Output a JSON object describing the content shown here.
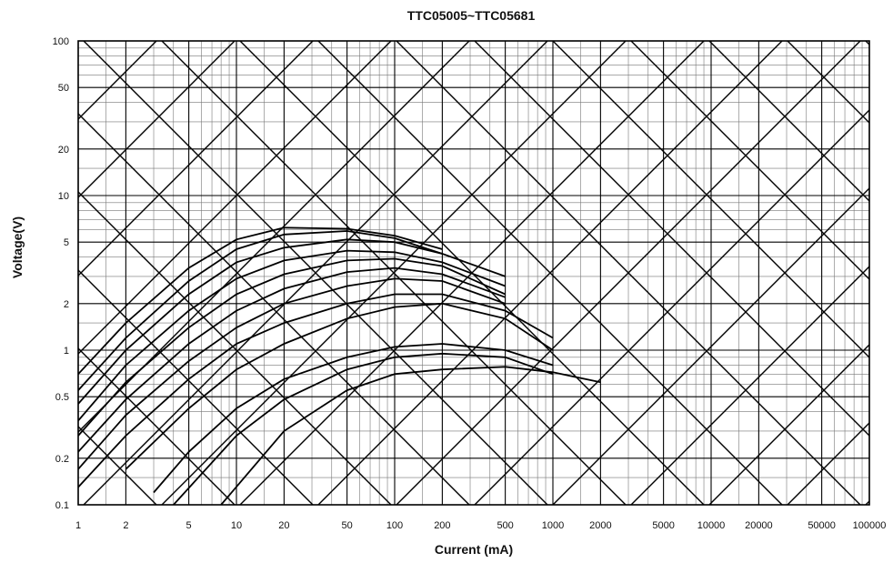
{
  "chart_data": {
    "type": "line",
    "title": "TTC05005~TTC05681",
    "xlabel": "Current (mA)",
    "ylabel": "Voltage(V)",
    "x_scale": "log",
    "y_scale": "log",
    "xlim": [
      1,
      100000
    ],
    "ylim": [
      0.1,
      100
    ],
    "x_ticks": [
      "1",
      "2",
      "5",
      "10",
      "20",
      "50",
      "100",
      "200",
      "500",
      "1000",
      "2000",
      "5000",
      "10000",
      "20000",
      "50000",
      "100000"
    ],
    "y_ticks": [
      "0.1",
      "0.2",
      "0.5",
      "1",
      "2",
      "5",
      "10",
      "20",
      "50",
      "100"
    ],
    "grid": true,
    "series": [
      {
        "x": [
          1,
          2,
          5,
          10,
          20,
          50,
          100,
          200
        ],
        "y": [
          0.7,
          1.5,
          3.4,
          5.2,
          6.2,
          6.1,
          5.5,
          4.5
        ]
      },
      {
        "x": [
          1,
          2,
          5,
          10,
          20,
          50,
          100,
          200
        ],
        "y": [
          0.55,
          1.2,
          2.8,
          4.5,
          5.6,
          5.9,
          5.3,
          4.2
        ]
      },
      {
        "x": [
          1,
          2,
          5,
          10,
          20,
          50,
          100,
          200,
          500
        ],
        "y": [
          0.45,
          1.0,
          2.3,
          3.7,
          4.6,
          5.2,
          5.0,
          4.2,
          3.0
        ]
      },
      {
        "x": [
          1,
          2,
          5,
          10,
          20,
          50,
          100,
          200,
          500
        ],
        "y": [
          0.35,
          0.8,
          1.8,
          2.9,
          3.8,
          4.4,
          4.3,
          3.7,
          2.6
        ]
      },
      {
        "x": [
          1,
          2,
          5,
          10,
          20,
          50,
          100,
          200,
          500
        ],
        "y": [
          0.28,
          0.62,
          1.4,
          2.3,
          3.1,
          3.8,
          3.9,
          3.5,
          2.3
        ]
      },
      {
        "x": [
          1,
          2,
          5,
          10,
          20,
          50,
          100,
          200,
          500
        ],
        "y": [
          0.22,
          0.48,
          1.1,
          1.8,
          2.5,
          3.2,
          3.4,
          3.1,
          2.2
        ]
      },
      {
        "x": [
          1,
          2,
          5,
          10,
          20,
          50,
          100,
          200,
          500
        ],
        "y": [
          0.17,
          0.38,
          0.85,
          1.4,
          2.0,
          2.6,
          2.9,
          2.8,
          2.0
        ]
      },
      {
        "x": [
          1,
          2,
          5,
          10,
          20,
          50,
          100,
          200,
          500,
          1000
        ],
        "y": [
          0.13,
          0.28,
          0.65,
          1.1,
          1.5,
          2.0,
          2.3,
          2.3,
          1.8,
          1.2
        ]
      },
      {
        "x": [
          2,
          5,
          10,
          20,
          50,
          100,
          200,
          500,
          1000
        ],
        "y": [
          0.17,
          0.42,
          0.75,
          1.1,
          1.6,
          1.9,
          2.0,
          1.6,
          1.0
        ]
      },
      {
        "x": [
          3,
          5,
          10,
          20,
          50,
          100,
          200,
          500,
          1000
        ],
        "y": [
          0.12,
          0.22,
          0.42,
          0.65,
          0.9,
          1.05,
          1.1,
          1.0,
          0.8
        ]
      },
      {
        "x": [
          4,
          10,
          20,
          50,
          100,
          200,
          500,
          1000
        ],
        "y": [
          0.1,
          0.28,
          0.48,
          0.75,
          0.9,
          0.95,
          0.9,
          0.7
        ]
      },
      {
        "x": [
          8,
          20,
          50,
          100,
          200,
          500,
          1000,
          2000
        ],
        "y": [
          0.1,
          0.3,
          0.55,
          0.7,
          0.75,
          0.78,
          0.72,
          0.62
        ]
      }
    ]
  }
}
